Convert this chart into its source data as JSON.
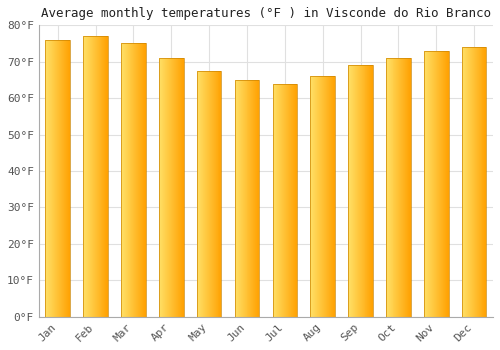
{
  "months": [
    "Jan",
    "Feb",
    "Mar",
    "Apr",
    "May",
    "Jun",
    "Jul",
    "Aug",
    "Sep",
    "Oct",
    "Nov",
    "Dec"
  ],
  "values": [
    76,
    77,
    75,
    71,
    67.5,
    65,
    64,
    66,
    69,
    71,
    73,
    74
  ],
  "bar_color_left": "#FFD54F",
  "bar_color_right": "#FFA000",
  "bar_color_top": "#FFB300",
  "bar_edge_color": "#CC8400",
  "title": "Average monthly temperatures (°F ) in Visconde do Rio Branco",
  "ylim": [
    0,
    80
  ],
  "yticks": [
    0,
    10,
    20,
    30,
    40,
    50,
    60,
    70,
    80
  ],
  "ytick_labels": [
    "0°F",
    "10°F",
    "20°F",
    "30°F",
    "40°F",
    "50°F",
    "60°F",
    "70°F",
    "80°F"
  ],
  "background_color": "#ffffff",
  "grid_color": "#e0e0e0",
  "title_fontsize": 9,
  "tick_fontsize": 8,
  "font_family": "monospace",
  "bar_width": 0.65
}
